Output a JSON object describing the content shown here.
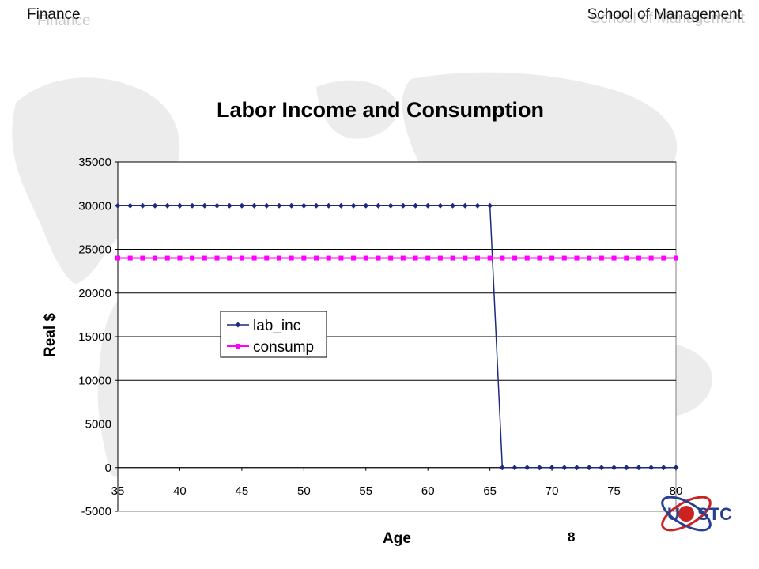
{
  "header": {
    "left": "Finance",
    "right": "School of Management"
  },
  "page_number": "8",
  "logo": {
    "text": "STC",
    "colors": {
      "red": "#cc2222",
      "blue": "#2a3f8f"
    }
  },
  "colors": {
    "lab_inc": "#1f2a7a",
    "consump": "#ff00ff",
    "grid": "#000000",
    "plot_bg": "#ffffff"
  },
  "chart_data": {
    "type": "line",
    "title": "Labor Income and Consumption",
    "xlabel": "Age",
    "ylabel": "Real $",
    "xlim": [
      35,
      80
    ],
    "ylim": [
      -5000,
      35000
    ],
    "xticks": [
      35,
      40,
      45,
      50,
      55,
      60,
      65,
      70,
      75,
      80
    ],
    "yticks": [
      -5000,
      0,
      5000,
      10000,
      15000,
      20000,
      25000,
      30000,
      35000
    ],
    "grid": "horizontal",
    "legend_position": "center-left",
    "x": [
      35,
      36,
      37,
      38,
      39,
      40,
      41,
      42,
      43,
      44,
      45,
      46,
      47,
      48,
      49,
      50,
      51,
      52,
      53,
      54,
      55,
      56,
      57,
      58,
      59,
      60,
      61,
      62,
      63,
      64,
      65,
      66,
      67,
      68,
      69,
      70,
      71,
      72,
      73,
      74,
      75,
      76,
      77,
      78,
      79,
      80
    ],
    "series": [
      {
        "name": "lab_inc",
        "marker": "diamond",
        "values": [
          30000,
          30000,
          30000,
          30000,
          30000,
          30000,
          30000,
          30000,
          30000,
          30000,
          30000,
          30000,
          30000,
          30000,
          30000,
          30000,
          30000,
          30000,
          30000,
          30000,
          30000,
          30000,
          30000,
          30000,
          30000,
          30000,
          30000,
          30000,
          30000,
          30000,
          30000,
          0,
          0,
          0,
          0,
          0,
          0,
          0,
          0,
          0,
          0,
          0,
          0,
          0,
          0,
          0
        ]
      },
      {
        "name": "consump",
        "marker": "square",
        "values": [
          24000,
          24000,
          24000,
          24000,
          24000,
          24000,
          24000,
          24000,
          24000,
          24000,
          24000,
          24000,
          24000,
          24000,
          24000,
          24000,
          24000,
          24000,
          24000,
          24000,
          24000,
          24000,
          24000,
          24000,
          24000,
          24000,
          24000,
          24000,
          24000,
          24000,
          24000,
          24000,
          24000,
          24000,
          24000,
          24000,
          24000,
          24000,
          24000,
          24000,
          24000,
          24000,
          24000,
          24000,
          24000,
          24000
        ]
      }
    ]
  }
}
